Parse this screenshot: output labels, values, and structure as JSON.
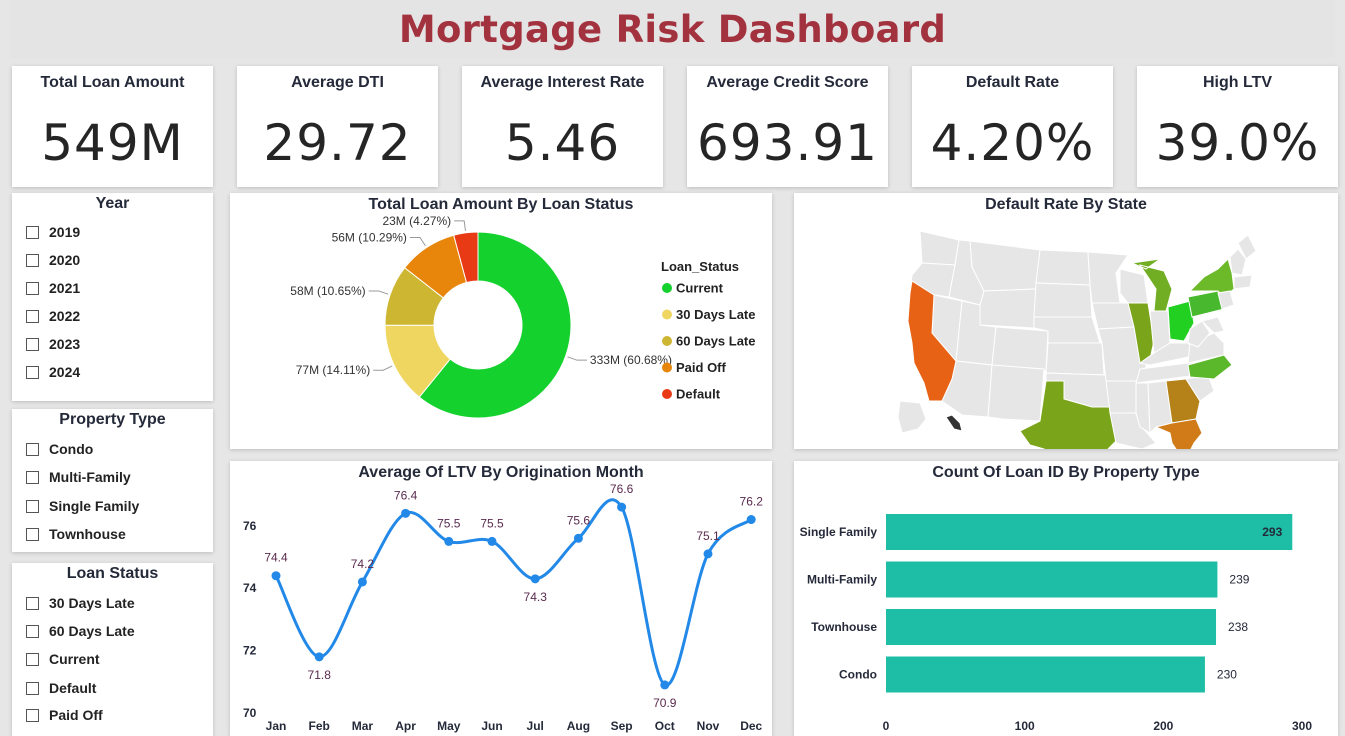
{
  "dashboard": {
    "title": "Mortgage Risk Dashboard"
  },
  "kpis": [
    {
      "label": "Total Loan Amount",
      "value": "549M"
    },
    {
      "label": "Average DTI",
      "value": "29.72"
    },
    {
      "label": "Average Interest Rate",
      "value": "5.46"
    },
    {
      "label": "Average Credit Score",
      "value": "693.91"
    },
    {
      "label": "Default Rate",
      "value": "4.20%"
    },
    {
      "label": "High LTV",
      "value": "39.0%"
    }
  ],
  "slicers": {
    "year": {
      "title": "Year",
      "items": [
        "2019",
        "2020",
        "2021",
        "2022",
        "2023",
        "2024"
      ]
    },
    "property_type": {
      "title": "Property Type",
      "items": [
        "Condo",
        "Multi-Family",
        "Single Family",
        "Townhouse"
      ]
    },
    "loan_status": {
      "title": "Loan Status",
      "items": [
        "30 Days Late",
        "60 Days Late",
        "Current",
        "Default",
        "Paid Off"
      ]
    }
  },
  "map": {
    "title": "Default Rate By State",
    "highlighted_states": [
      {
        "state": "CA",
        "color": "#e86216"
      },
      {
        "state": "TX",
        "color": "#7aa51a"
      },
      {
        "state": "GA",
        "color": "#b58219"
      },
      {
        "state": "FL",
        "color": "#d07b18"
      },
      {
        "state": "OH",
        "color": "#22d022"
      },
      {
        "state": "PA",
        "color": "#48b82e"
      },
      {
        "state": "NY",
        "color": "#6cba29"
      },
      {
        "state": "NC",
        "color": "#5bb82a"
      },
      {
        "state": "IL",
        "color": "#7aa51a"
      },
      {
        "state": "MI",
        "color": "#72ae23"
      }
    ]
  },
  "chart_data": [
    {
      "type": "pie",
      "title": "Total Loan Amount By Loan Status",
      "legend_title": "Loan_Status",
      "legend_position": "right",
      "slices": [
        {
          "name": "Current",
          "value": 333,
          "label": "333M (60.68%)",
          "color": "#14d12e"
        },
        {
          "name": "30 Days Late",
          "value": 77,
          "label": "77M (14.11%)",
          "color": "#efd660"
        },
        {
          "name": "60 Days Late",
          "value": 58,
          "label": "58M (10.65%)",
          "color": "#cdb632"
        },
        {
          "name": "Paid Off",
          "value": 56,
          "label": "56M (10.29%)",
          "color": "#e8860c"
        },
        {
          "name": "Default",
          "value": 23,
          "label": "23M (4.27%)",
          "color": "#e83a14"
        }
      ]
    },
    {
      "type": "line",
      "title": "Average Of LTV By Origination Month",
      "categories": [
        "Jan",
        "Feb",
        "Mar",
        "Apr",
        "May",
        "Jun",
        "Jul",
        "Aug",
        "Sep",
        "Oct",
        "Nov",
        "Dec"
      ],
      "values": [
        74.4,
        71.8,
        74.2,
        76.4,
        75.5,
        75.5,
        74.3,
        75.6,
        76.6,
        70.9,
        75.1,
        76.2
      ],
      "y_ticks": [
        70,
        72,
        74,
        76
      ],
      "ylim": [
        70,
        76.9
      ],
      "color": "#2289e8"
    },
    {
      "type": "bar",
      "orientation": "horizontal",
      "title": "Count Of Loan ID By Property Type",
      "categories": [
        "Single Family",
        "Multi-Family",
        "Townhouse",
        "Condo"
      ],
      "values": [
        293,
        239,
        238,
        230
      ],
      "x_ticks": [
        0,
        100,
        200,
        300
      ],
      "xlim": [
        0,
        300
      ],
      "color": "#1dbea5"
    }
  ]
}
